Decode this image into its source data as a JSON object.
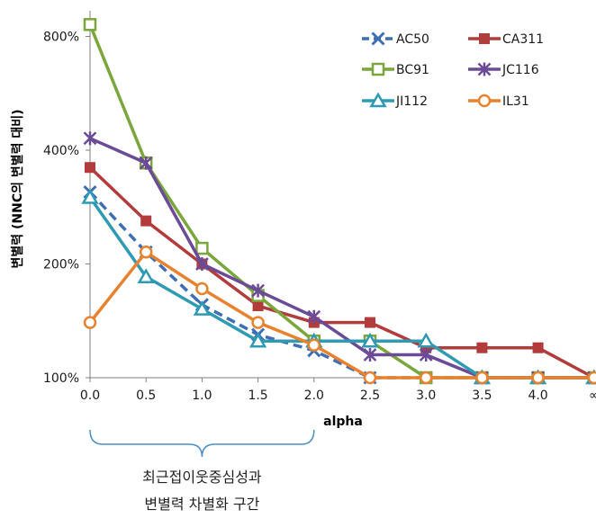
{
  "chart_data": {
    "type": "line",
    "title": "",
    "xlabel": "alpha",
    "ylabel": "변별력 (NNC의 변별력 대비)",
    "y_scale": "log2",
    "ylim": [
      1,
      9
    ],
    "yticks": [
      {
        "value": 1,
        "label": "100%"
      },
      {
        "value": 2,
        "label": "200%"
      },
      {
        "value": 4,
        "label": "400%"
      },
      {
        "value": 8,
        "label": "800%"
      }
    ],
    "x_labels": [
      "0.0",
      "0.5",
      "1.0",
      "1.5",
      "2.0",
      "2.5",
      "3.0",
      "3.5",
      "4.0",
      "∞"
    ],
    "legend_position": "top-right",
    "grid": false,
    "series": [
      {
        "name": "AC50",
        "color": "#3d6fb5",
        "marker": "x",
        "dashed": true,
        "values": [
          3.1,
          2.15,
          1.56,
          1.3,
          1.18,
          1.0,
          1.0,
          1.0,
          1.0,
          1.0
        ]
      },
      {
        "name": "CA311",
        "color": "#b23b3b",
        "marker": "square",
        "dashed": false,
        "values": [
          3.6,
          2.6,
          2.0,
          1.55,
          1.4,
          1.4,
          1.2,
          1.2,
          1.2,
          1.0
        ]
      },
      {
        "name": "BC91",
        "color": "#7aa63c",
        "marker": "square-open",
        "dashed": false,
        "values": [
          8.6,
          3.7,
          2.2,
          1.65,
          1.25,
          1.25,
          1.0,
          1.0,
          1.0,
          1.0
        ]
      },
      {
        "name": "JC116",
        "color": "#6b4b96",
        "marker": "star",
        "dashed": false,
        "values": [
          4.3,
          3.7,
          2.0,
          1.7,
          1.45,
          1.15,
          1.15,
          1.0,
          1.0,
          1.0
        ]
      },
      {
        "name": "JI112",
        "color": "#2f9bb3",
        "marker": "triangle-open",
        "dashed": false,
        "values": [
          3.0,
          1.85,
          1.52,
          1.25,
          1.25,
          1.25,
          1.25,
          1.0,
          1.0,
          1.0
        ]
      },
      {
        "name": "IL31",
        "color": "#e8822e",
        "marker": "circle-open",
        "dashed": false,
        "values": [
          1.4,
          2.15,
          1.72,
          1.4,
          1.22,
          1.0,
          1.0,
          1.0,
          1.0,
          1.0
        ]
      }
    ],
    "annotation": {
      "lines": [
        "최근접이웃중심성과",
        "변별력 차별화 구간"
      ],
      "x_from": "0.0",
      "x_to": "2.0"
    }
  }
}
